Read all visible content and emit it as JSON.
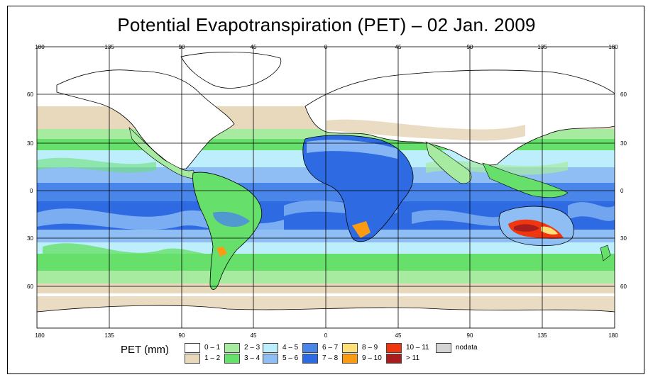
{
  "title": "Potential Evapotranspiration (PET) – 02 Jan. 2009",
  "axis": {
    "lon_ticks": [
      "180",
      "135",
      "90",
      "45",
      "0",
      "45",
      "90",
      "135",
      "180"
    ],
    "lat_ticks": [
      "60",
      "30",
      "0",
      "30",
      "60"
    ]
  },
  "legend": {
    "title": "PET (mm)",
    "items": [
      {
        "label": "0 – 1",
        "color": "#ffffff"
      },
      {
        "label": "1 – 2",
        "color": "#e8d8bc"
      },
      {
        "label": "2 – 3",
        "color": "#a6eba0"
      },
      {
        "label": "3 – 4",
        "color": "#66e06a"
      },
      {
        "label": "4 – 5",
        "color": "#bdeefb"
      },
      {
        "label": "5 – 6",
        "color": "#8fbef5"
      },
      {
        "label": "6 – 7",
        "color": "#4a86ea"
      },
      {
        "label": "7 – 8",
        "color": "#2e6be3"
      },
      {
        "label": "8 – 9",
        "color": "#fde07a"
      },
      {
        "label": "9 – 10",
        "color": "#fb9b13"
      },
      {
        "label": "10 – 11",
        "color": "#f0360f"
      },
      {
        "label": "> 11",
        "color": "#a81e1e"
      },
      {
        "label": "nodata",
        "color": "#d4d4d4"
      }
    ]
  },
  "colors": {
    "ocean_tropics": "#4a86ea",
    "ocean_deep": "#2e6be3",
    "subtropics": "#8fbef5",
    "midlat": "#bdeefb",
    "green": "#66e06a",
    "light_green": "#a6eba0",
    "tan": "#e8d8bc",
    "white": "#ffffff"
  }
}
